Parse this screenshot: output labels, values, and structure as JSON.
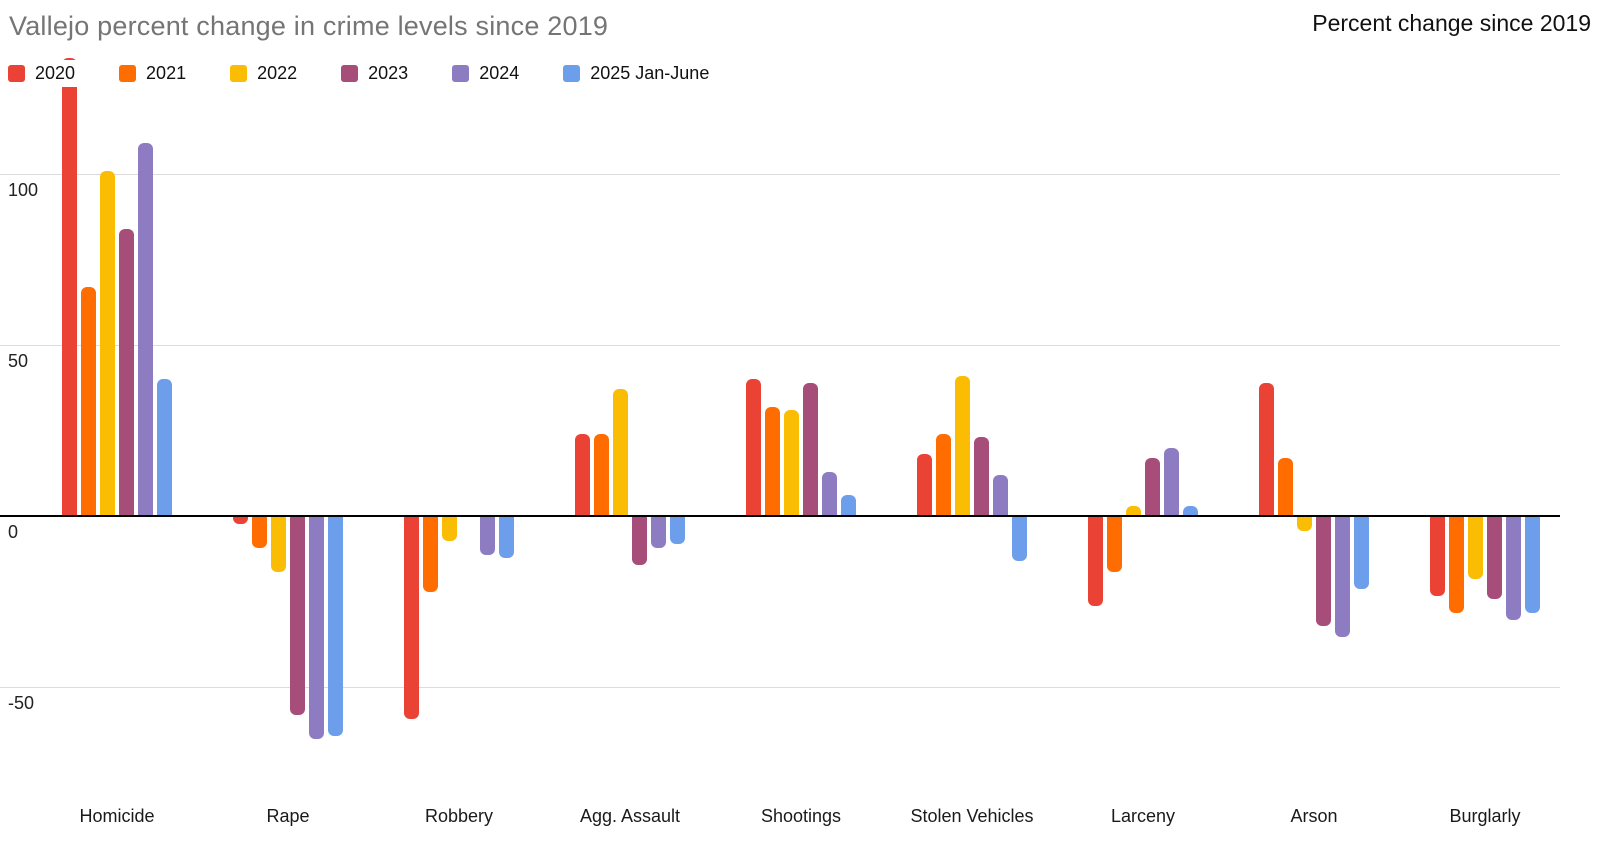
{
  "header": {
    "title": "Vallejo percent change in crime levels since 2019",
    "title_color": "#757575",
    "right_label": "Percent change since 2019"
  },
  "chart_data": {
    "type": "bar",
    "title": "Vallejo percent change in crime levels since 2019",
    "right_annotation": "Percent change since 2019",
    "categories": [
      "Homicide",
      "Rape",
      "Robbery",
      "Agg. Assault",
      "Shootings",
      "Stolen Vehicles",
      "Larceny",
      "Arson",
      "Burglarly"
    ],
    "series": [
      {
        "name": "2020",
        "color": "#EA4335",
        "values": [
          134,
          -2,
          -59,
          24,
          40,
          18,
          -26,
          39,
          -23
        ]
      },
      {
        "name": "2021",
        "color": "#FF6D01",
        "values": [
          67,
          -9,
          -22,
          24,
          32,
          24,
          -16,
          17,
          -28
        ]
      },
      {
        "name": "2022",
        "color": "#FBBC04",
        "values": [
          101,
          -16,
          -7,
          37,
          31,
          41,
          3,
          -4,
          -18
        ]
      },
      {
        "name": "2023",
        "color": "#A64D79",
        "values": [
          84,
          -58,
          0,
          -14,
          39,
          23,
          17,
          -32,
          -24
        ]
      },
      {
        "name": "2024",
        "color": "#8E7CC3",
        "values": [
          109,
          -65,
          -11,
          -9,
          13,
          12,
          20,
          -35,
          -30
        ]
      },
      {
        "name": "2025 Jan-June",
        "color": "#6D9EEB",
        "values": [
          40,
          -64,
          -12,
          -8,
          6,
          -13,
          3,
          -21,
          -28
        ]
      }
    ],
    "y_ticks": [
      100,
      50,
      0,
      -50
    ],
    "ylim": [
      -75,
      140
    ],
    "ylabel": "",
    "xlabel": "",
    "grid": true,
    "legend_position": "top-left",
    "baseline": 0
  }
}
